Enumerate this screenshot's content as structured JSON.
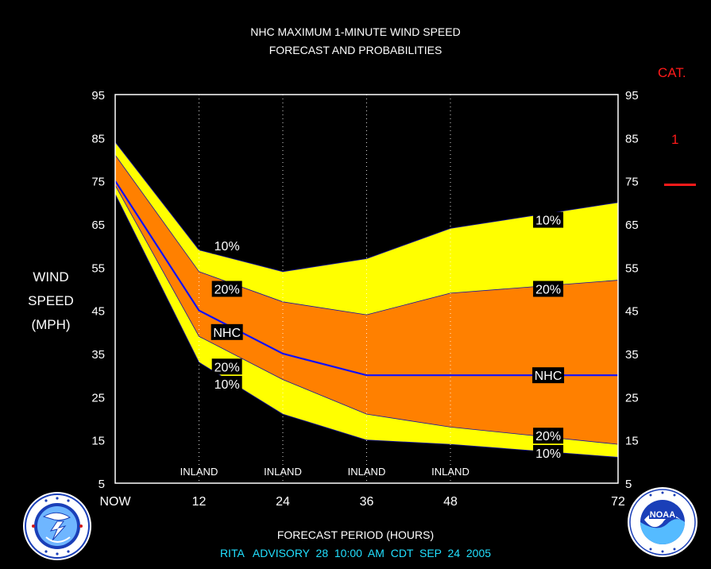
{
  "header": {
    "title_line1": "NHC MAXIMUM 1-MINUTE WIND SPEED",
    "title_line2": "FORECAST AND PROBABILITIES"
  },
  "y_axis": {
    "line1": "WIND",
    "line2": "SPEED",
    "line3": "(MPH)"
  },
  "x_axis_title": "FORECAST PERIOD (HOURS)",
  "advisory_line": "RITA   ADVISORY  28  10:00  AM  CDT  SEP  24  2005",
  "category": {
    "header": "CAT.",
    "value": "1",
    "color": "#ff1a1a"
  },
  "colors": {
    "outer_band": "#ffff00",
    "inner_band": "#ff8000",
    "nhc_line": "#1010ff",
    "grid": "#ffffff"
  },
  "logos": {
    "left": "nws-logo",
    "right": "noaa-logo"
  },
  "chart_data": {
    "type": "area",
    "x": [
      0,
      12,
      24,
      36,
      48,
      72
    ],
    "x_tick_labels": [
      "NOW",
      "12",
      "24",
      "36",
      "48",
      "72"
    ],
    "xlim": [
      0,
      72
    ],
    "ylim": [
      5,
      95
    ],
    "yticks": [
      5,
      15,
      25,
      35,
      45,
      55,
      65,
      75,
      85,
      95
    ],
    "inland_label": "INLAND",
    "inland_x": [
      12,
      24,
      36,
      48
    ],
    "series": [
      {
        "band": "upper-10",
        "values": [
          84,
          59,
          54,
          57,
          64,
          70
        ]
      },
      {
        "band": "upper-20",
        "values": [
          81,
          54,
          47,
          44,
          49,
          52
        ]
      },
      {
        "name": "NHC",
        "values": [
          75,
          45,
          35,
          30,
          30,
          30
        ]
      },
      {
        "band": "lower-20",
        "values": [
          74,
          39,
          29,
          21,
          18,
          14
        ]
      },
      {
        "band": "lower-10",
        "values": [
          72,
          33,
          21,
          15,
          14,
          11
        ]
      }
    ],
    "data_labels": [
      {
        "text": "10%",
        "x": 16,
        "y": 60
      },
      {
        "text": "20%",
        "x": 16,
        "y": 50
      },
      {
        "text": "NHC",
        "x": 16,
        "y": 40
      },
      {
        "text": "20%",
        "x": 16,
        "y": 32
      },
      {
        "text": "10%",
        "x": 16,
        "y": 28
      },
      {
        "text": "10%",
        "x": 62,
        "y": 66
      },
      {
        "text": "20%",
        "x": 62,
        "y": 50
      },
      {
        "text": "NHC",
        "x": 62,
        "y": 30
      },
      {
        "text": "20%",
        "x": 62,
        "y": 16
      },
      {
        "text": "10%",
        "x": 62,
        "y": 12
      }
    ]
  }
}
